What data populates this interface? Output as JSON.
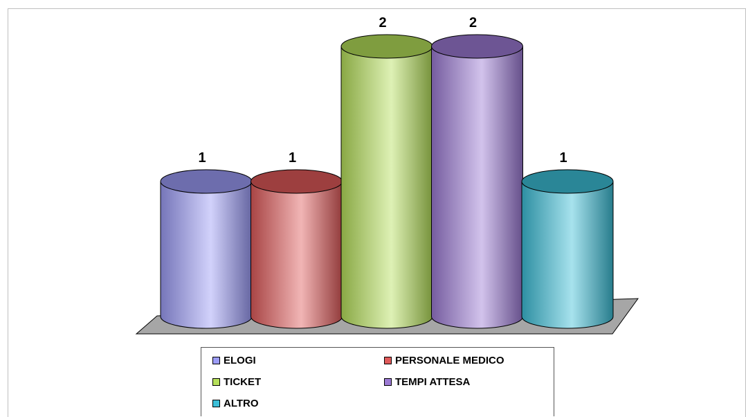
{
  "chart_data": {
    "type": "bar",
    "categories": [
      "ELOGI",
      "PERSONALE MEDICO",
      "TICKET",
      "TEMPI ATTESA",
      "ALTRO"
    ],
    "values": [
      1,
      1,
      2,
      2,
      1
    ],
    "title": "",
    "xlabel": "",
    "ylabel": "",
    "ylim": [
      0,
      2
    ],
    "grid": false,
    "legend": "bottom",
    "style": "3d-cylinder",
    "colors": [
      "#9c9cf7",
      "#e05a5a",
      "#b6e05a",
      "#9c7ad4",
      "#3cbfd8"
    ]
  }
}
